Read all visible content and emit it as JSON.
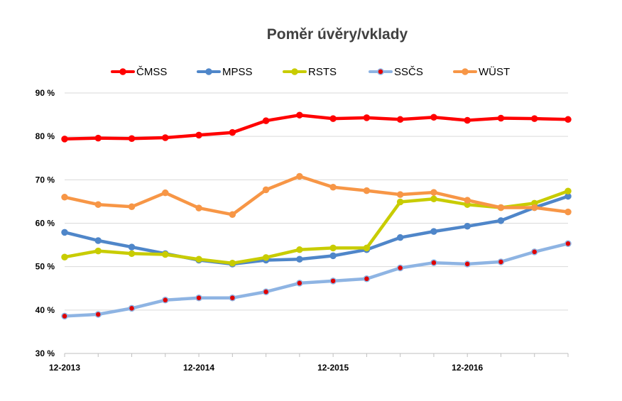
{
  "chart_data": {
    "type": "line",
    "title": "Poměr úvěry/vklady",
    "xlabel": "",
    "ylabel": "",
    "ylim": [
      30,
      90
    ],
    "yticks": [
      30,
      40,
      50,
      60,
      70,
      80,
      90
    ],
    "ytick_labels": [
      "30 %",
      "40 %",
      "50 %",
      "60 %",
      "70 %",
      "80 %",
      "90 %"
    ],
    "x_tick_labels": [
      {
        "index": 0,
        "label": "12-2013"
      },
      {
        "index": 4,
        "label": "12-2014"
      },
      {
        "index": 8,
        "label": "12-2015"
      },
      {
        "index": 12,
        "label": "12-2016"
      }
    ],
    "x_count": 16,
    "grid": "horizontal",
    "legend": "top",
    "series": [
      {
        "name": "ČMSS",
        "color": "#ff0000",
        "marker_color": "#ff0000",
        "values": [
          79.4,
          79.6,
          79.5,
          79.7,
          80.3,
          80.9,
          83.6,
          84.9,
          84.1,
          84.3,
          83.9,
          84.4,
          83.7,
          84.2,
          84.1,
          83.9
        ]
      },
      {
        "name": "MPSS",
        "color": "#4f86c9",
        "marker_color": "#4f86c9",
        "values": [
          57.9,
          56.0,
          54.5,
          53.0,
          51.5,
          50.6,
          51.5,
          51.7,
          52.5,
          53.9,
          56.7,
          58.1,
          59.3,
          60.6,
          63.6,
          66.2
        ]
      },
      {
        "name": "RSTS",
        "color": "#c8cc00",
        "marker_color": "#c8cc00",
        "values": [
          52.2,
          53.6,
          53.0,
          52.8,
          51.7,
          50.8,
          52.1,
          53.9,
          54.3,
          54.3,
          64.9,
          65.6,
          64.3,
          63.6,
          64.6,
          67.4
        ]
      },
      {
        "name": "SSČS",
        "color": "#8eb4e3",
        "marker_color": "#e00000",
        "values": [
          38.6,
          39.0,
          40.4,
          42.3,
          42.8,
          42.8,
          44.2,
          46.2,
          46.7,
          47.2,
          49.7,
          50.9,
          50.6,
          51.1,
          53.4,
          55.3
        ]
      },
      {
        "name": "WÜST",
        "color": "#f79646",
        "marker_color": "#f79646",
        "values": [
          66.0,
          64.3,
          63.8,
          67.0,
          63.5,
          62.0,
          67.7,
          70.8,
          68.3,
          67.5,
          66.6,
          67.1,
          65.3,
          63.6,
          63.6,
          62.6
        ]
      }
    ]
  }
}
